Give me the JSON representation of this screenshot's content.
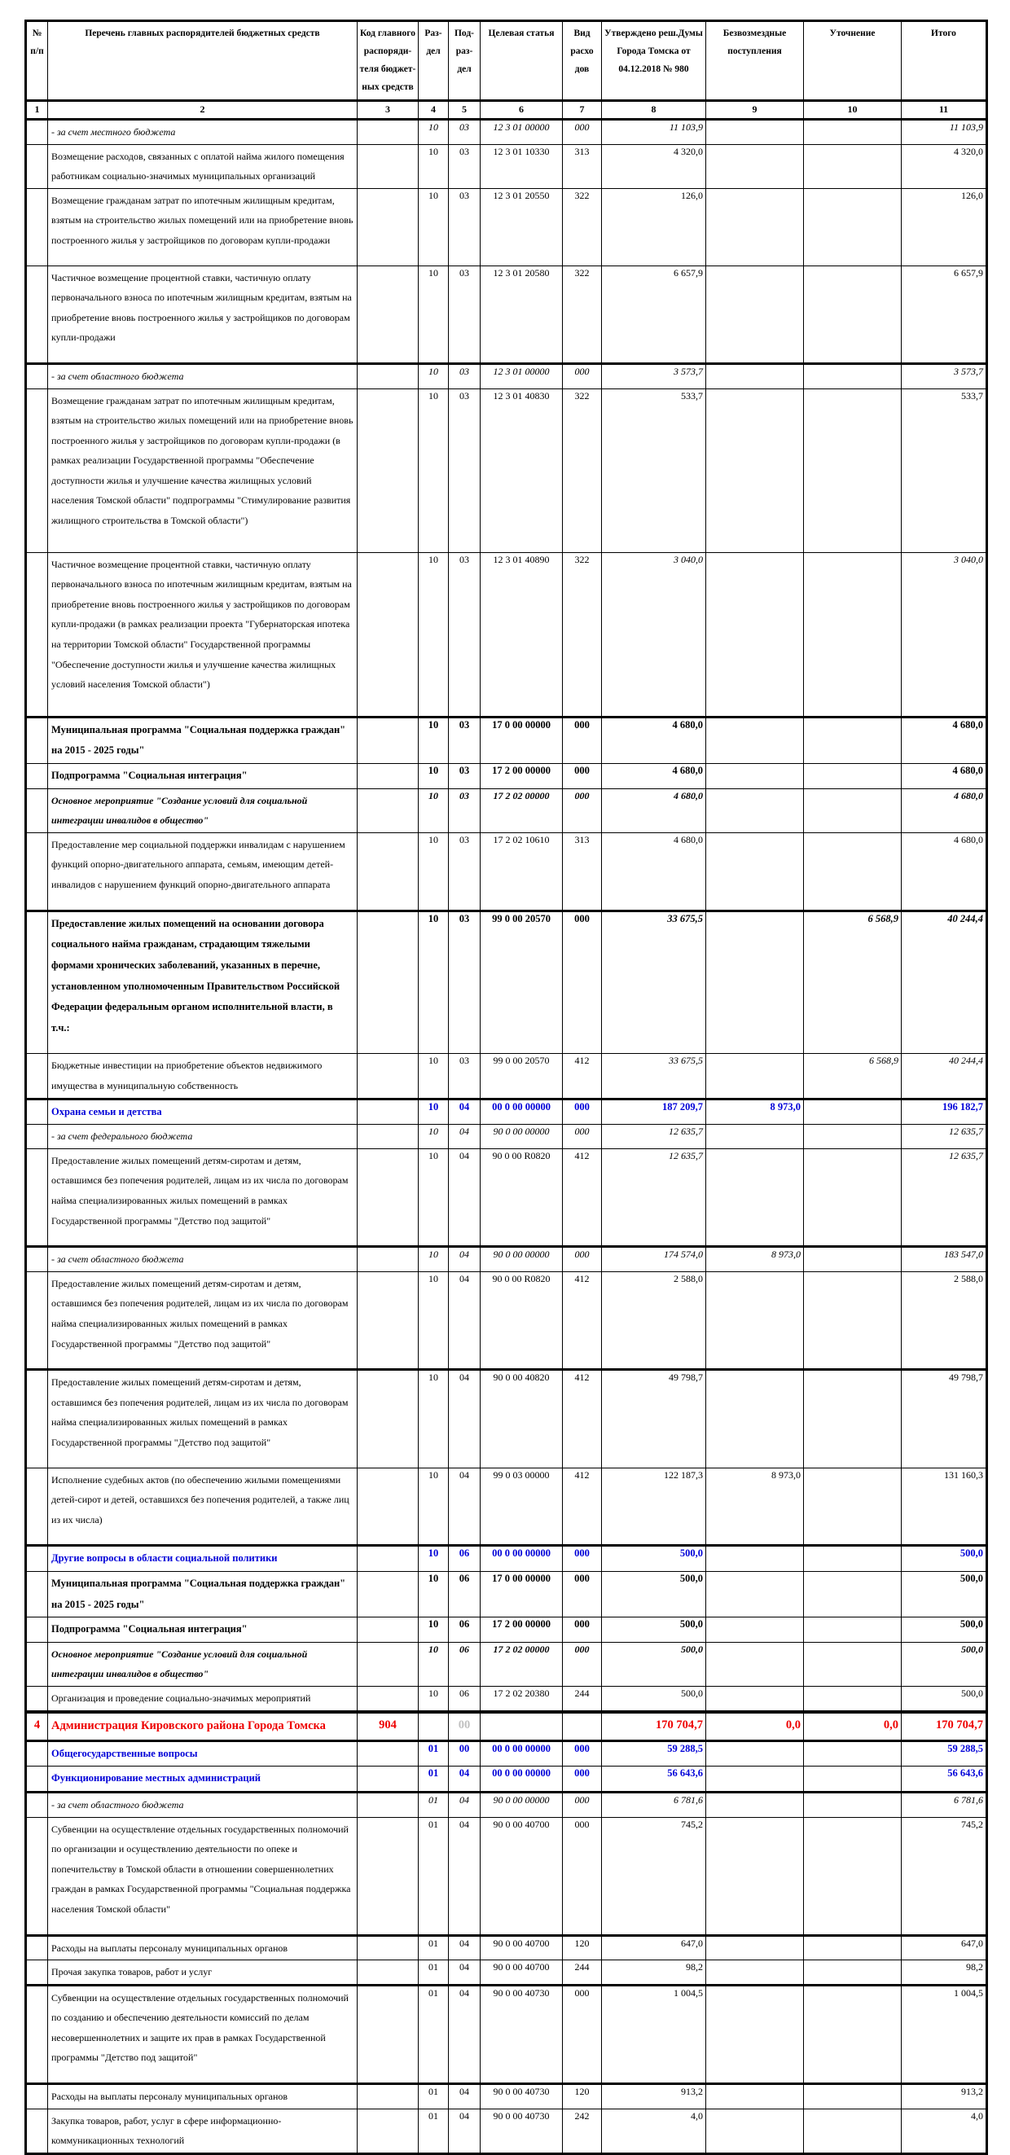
{
  "header": {
    "columns": [
      {
        "label": "№ п/п",
        "num": "1"
      },
      {
        "label": "Перечень главных распорядителей бюджетных средств",
        "num": "2"
      },
      {
        "label": "Код главного распоряди- теля бюджет- ных средств",
        "num": "3"
      },
      {
        "label": "Раз- дел",
        "num": "4"
      },
      {
        "label": "Под- раз- дел",
        "num": "5"
      },
      {
        "label": "Целевая статья",
        "num": "6"
      },
      {
        "label": "Вид расхо дов",
        "num": "7"
      },
      {
        "label": "Утверждено реш.Думы Города Томска от 04.12.2018 № 980",
        "num": "8"
      },
      {
        "label": "Безвозмездные поступления",
        "num": "9"
      },
      {
        "label": "Уточнение",
        "num": "10"
      },
      {
        "label": "Итого",
        "num": "11"
      }
    ]
  },
  "colors": {
    "section_blue": "#0000d8",
    "section_red": "#ee0000",
    "ghost_gray": "#c0c0c0",
    "border": "#000000"
  },
  "rows": [
    {
      "cls": "it",
      "num": "",
      "name": "- за счет местного бюджета",
      "code": "",
      "rz": "10",
      "pr": "03",
      "csr": "12 3 01 00000",
      "vr": "000",
      "approved": "11 103,9",
      "grants": "",
      "adjust": "",
      "total": "11 103,9"
    },
    {
      "cls": "",
      "num": "",
      "name": "Возмещение расходов, связанных с оплатой найма жилого помещения работникам социально-значимых муниципальных организаций",
      "code": "",
      "rz": "10",
      "pr": "03",
      "csr": "12 3 01 10330",
      "vr": "313",
      "approved": "4 320,0",
      "grants": "",
      "adjust": "",
      "total": "4 320,0"
    },
    {
      "cls": "",
      "num": "",
      "name": "Возмещение гражданам затрат по ипотечным жилищным кредитам, взятым на строительство жилых помещений или на приобретение вновь построенного жилья у застройщиков по договорам купли-продажи",
      "code": "",
      "rz": "10",
      "pr": "03",
      "csr": "12 3 01 20550",
      "vr": "322",
      "approved": "126,0",
      "grants": "",
      "adjust": "",
      "total": "126,0"
    },
    {
      "cls": "",
      "num": "",
      "name": "Частичное возмещение процентной ставки, частичную оплату первоначального взноса по ипотечным жилищным кредитам, взятым на приобретение вновь построенного жилья у застройщиков по договорам купли-продажи",
      "code": "",
      "rz": "10",
      "pr": "03",
      "csr": "12 3 01 20580",
      "vr": "322",
      "approved": "6 657,9",
      "grants": "",
      "adjust": "",
      "total": "6 657,9"
    },
    {
      "cls": "it",
      "thick": true,
      "num": "",
      "name": "- за счет областного бюджета",
      "code": "",
      "rz": "10",
      "pr": "03",
      "csr": "12 3 01 00000",
      "vr": "000",
      "approved": "3 573,7",
      "grants": "",
      "adjust": "",
      "total": "3 573,7"
    },
    {
      "cls": "",
      "num": "",
      "name": "Возмещение гражданам затрат по ипотечным жилищным кредитам, взятым на строительство жилых помещений или на приобретение вновь построенного жилья у застройщиков по договорам купли-продажи (в рамках реализации Государственной программы \"Обеспечение доступности жилья и улучшение качества жилищных условий населения Томской области\" подпрограммы \"Стимулирование развития жилищного строительства в Томской области\")",
      "code": "",
      "rz": "10",
      "pr": "03",
      "csr": "12 3 01 40830",
      "vr": "322",
      "approved": "533,7",
      "grants": "",
      "adjust": "",
      "total": "533,7"
    },
    {
      "cls": "",
      "num": "",
      "name": "Частичное возмещение процентной ставки, частичную оплату первоначального взноса по ипотечным жилищным кредитам, взятым на приобретение вновь построенного жилья у застройщиков по договорам купли-продажи (в рамках реализации проекта \"Губернаторская ипотека на территории Томской области\" Государственной программы \"Обеспечение доступности жилья и улучшение качества жилищных условий населения Томской области\")",
      "code": "",
      "rz": "10",
      "pr": "03",
      "csr": "12 3 01 40890",
      "vr": "322",
      "approved": "3 040,0",
      "grants": "",
      "adjust": "",
      "total": "3 040,0",
      "numcls": "it"
    },
    {
      "cls": "b",
      "thick": true,
      "num": "",
      "name": "Муниципальная программа \"Социальная поддержка граждан\" на 2015 - 2025 годы\"",
      "code": "",
      "rz": "10",
      "pr": "03",
      "csr": "17 0 00 00000",
      "vr": "000",
      "approved": "4 680,0",
      "grants": "",
      "adjust": "",
      "total": "4 680,0"
    },
    {
      "cls": "b",
      "num": "",
      "name": "Подпрограмма \"Социальная интеграция\"",
      "code": "",
      "rz": "10",
      "pr": "03",
      "csr": "17 2 00 00000",
      "vr": "000",
      "approved": "4 680,0",
      "grants": "",
      "adjust": "",
      "total": "4 680,0"
    },
    {
      "cls": "bi",
      "num": "",
      "name": "Основное мероприятие \"Создание условий для социальной интеграции инвалидов в общество\"",
      "code": "",
      "rz": "10",
      "pr": "03",
      "csr": "17 2 02 00000",
      "vr": "000",
      "approved": "4 680,0",
      "grants": "",
      "adjust": "",
      "total": "4 680,0"
    },
    {
      "cls": "",
      "num": "",
      "name": "Предоставление мер социальной поддержки инвалидам с нарушением функций опорно-двигательного аппарата, семьям, имеющим детей-инвалидов с нарушением функций опорно-двигательного аппарата",
      "code": "",
      "rz": "10",
      "pr": "03",
      "csr": "17 2 02 10610",
      "vr": "313",
      "approved": "4 680,0",
      "grants": "",
      "adjust": "",
      "total": "4 680,0"
    },
    {
      "cls": "b",
      "thick": true,
      "num": "",
      "name": "Предоставление жилых помещений на основании договора социального найма гражданам, страдающим тяжелыми формами хронических заболеваний, указанных в перечне, установленном уполномоченным Правительством Российской Федерации федеральным органом исполнительной власти, в т.ч.:",
      "code": "",
      "rz": "10",
      "pr": "03",
      "csr": "99 0 00 20570",
      "vr": "000",
      "approved": "33 675,5",
      "grants": "",
      "adjust": "6 568,9",
      "total": "40 244,4",
      "numcls": "bi"
    },
    {
      "cls": "",
      "num": "",
      "name": "Бюджетные инвестиции на приобретение объектов недвижимого имущества в муниципальную собственность",
      "code": "",
      "rz": "10",
      "pr": "03",
      "csr": "99 0 00 20570",
      "vr": "412",
      "approved": "33 675,5",
      "grants": "",
      "adjust": "6 568,9",
      "total": "40 244,4",
      "numcls": "it"
    },
    {
      "cls": "blue",
      "thick": true,
      "num": "",
      "name": "Охрана семьи и детства",
      "code": "",
      "rz": "10",
      "pr": "04",
      "csr": "00 0 00 00000",
      "vr": "000",
      "approved": "187 209,7",
      "grants": "8 973,0",
      "adjust": "",
      "total": "196 182,7"
    },
    {
      "cls": "it",
      "num": "",
      "name": "- за счет федерального бюджета",
      "code": "",
      "rz": "10",
      "pr": "04",
      "csr": "90 0 00 00000",
      "vr": "000",
      "approved": "12 635,7",
      "grants": "",
      "adjust": "",
      "total": "12 635,7"
    },
    {
      "cls": "",
      "num": "",
      "name": "Предоставление жилых помещений детям-сиротам и детям, оставшимся без попечения родителей, лицам из их числа по договорам найма специализированных жилых помещений  в рамках Государственной программы \"Детство под защитой\"",
      "code": "",
      "rz": "10",
      "pr": "04",
      "csr": "90 0 00 R0820",
      "vr": "412",
      "approved": "12 635,7",
      "grants": "",
      "adjust": "",
      "total": "12 635,7",
      "numcls": "it"
    },
    {
      "cls": "it",
      "thick": true,
      "num": "",
      "name": "- за счет областного бюджета",
      "code": "",
      "rz": "10",
      "pr": "04",
      "csr": "90 0 00 00000",
      "vr": "000",
      "approved": "174 574,0",
      "grants": "8 973,0",
      "adjust": "",
      "total": "183 547,0"
    },
    {
      "cls": "",
      "num": "",
      "name": "Предоставление жилых помещений детям-сиротам и детям, оставшимся без попечения родителей, лицам из их числа по договорам найма специализированных жилых помещений в рамках Государственной программы \"Детство под защитой\"",
      "code": "",
      "rz": "10",
      "pr": "04",
      "csr": "90 0 00 R0820",
      "vr": "412",
      "approved": "2 588,0",
      "grants": "",
      "adjust": "",
      "total": "2 588,0"
    },
    {
      "cls": "",
      "thick": true,
      "num": "",
      "name": "Предоставление жилых помещений детям-сиротам и детям, оставшимся без попечения родителей, лицам из их числа по договорам найма специализированных жилых помещений в рамках Государственной программы \"Детство под защитой\"",
      "code": "",
      "rz": "10",
      "pr": "04",
      "csr": "90 0 00 40820",
      "vr": "412",
      "approved": "49 798,7",
      "grants": "",
      "adjust": "",
      "total": "49 798,7"
    },
    {
      "cls": "",
      "num": "",
      "name": "Исполнение судебных актов (по обеспечению жилыми помещениями детей-сирот и детей, оставшихся без попечения родителей, а также лиц из их числа)",
      "code": "",
      "rz": "10",
      "pr": "04",
      "csr": "99 0 03 00000",
      "vr": "412",
      "approved": "122 187,3",
      "grants": "8 973,0",
      "adjust": "",
      "total": "131 160,3"
    },
    {
      "cls": "blue",
      "thick": true,
      "num": "",
      "name": "Другие вопросы в области социальной политики",
      "code": "",
      "rz": "10",
      "pr": "06",
      "csr": "00 0 00 00000",
      "vr": "000",
      "approved": "500,0",
      "grants": "",
      "adjust": "",
      "total": "500,0"
    },
    {
      "cls": "b",
      "num": "",
      "name": "Муниципальная программа \"Социальная поддержка граждан\" на 2015 - 2025 годы\"",
      "code": "",
      "rz": "10",
      "pr": "06",
      "csr": "17 0 00 00000",
      "vr": "000",
      "approved": "500,0",
      "grants": "",
      "adjust": "",
      "total": "500,0"
    },
    {
      "cls": "b",
      "num": "",
      "name": "Подпрограмма \"Социальная интеграция\"",
      "code": "",
      "rz": "10",
      "pr": "06",
      "csr": "17 2 00 00000",
      "vr": "000",
      "approved": "500,0",
      "grants": "",
      "adjust": "",
      "total": "500,0"
    },
    {
      "cls": "bi",
      "num": "",
      "name": "Основное мероприятие \"Создание условий для социальной интеграции инвалидов в общество\"",
      "code": "",
      "rz": "10",
      "pr": "06",
      "csr": "17 2 02 00000",
      "vr": "000",
      "approved": "500,0",
      "grants": "",
      "adjust": "",
      "total": "500,0"
    },
    {
      "cls": "",
      "num": "",
      "name": "Организация и проведение социально-значимых мероприятий",
      "code": "",
      "rz": "10",
      "pr": "06",
      "csr": "17 2 02 20380",
      "vr": "244",
      "approved": "500,0",
      "grants": "",
      "adjust": "",
      "total": "500,0"
    },
    {
      "cls": "red",
      "vthick": true,
      "num": "4",
      "name": "Администрация Кировского района Города Томска",
      "code": "904",
      "rz": "",
      "pr": "",
      "ghost_pr": "00",
      "csr": "",
      "vr": "",
      "approved": "170 704,7",
      "grants": "0,0",
      "adjust": "0,0",
      "total": "170 704,7"
    },
    {
      "cls": "blue",
      "thick": true,
      "num": "",
      "name": "Общегосударственные вопросы",
      "code": "",
      "rz": "01",
      "pr": "00",
      "csr": "00 0 00 00000",
      "vr": "000",
      "approved": "59 288,5",
      "grants": "",
      "adjust": "",
      "total": "59 288,5"
    },
    {
      "cls": "blue",
      "num": "",
      "name": "Функционирование местных администраций",
      "code": "",
      "rz": "01",
      "pr": "04",
      "csr": "00 0 00 00000",
      "vr": "000",
      "approved": "56 643,6",
      "grants": "",
      "adjust": "",
      "total": "56 643,6"
    },
    {
      "cls": "it",
      "thick": true,
      "num": "",
      "name": "- за счет областного бюджета",
      "code": "",
      "rz": "01",
      "pr": "04",
      "csr": "90 0 00 00000",
      "vr": "000",
      "approved": "6 781,6",
      "grants": "",
      "adjust": "",
      "total": "6 781,6"
    },
    {
      "cls": "",
      "num": "",
      "name": "Субвенции на осуществление отдельных государственных полномочий по организации и осуществлению деятельности по опеке и попечительству в Томской области в отношении совершеннолетних граждан в рамках Государственной программы \"Социальная поддержка населения Томской области\"",
      "code": "",
      "rz": "01",
      "pr": "04",
      "csr": "90 0 00 40700",
      "vr": "000",
      "approved": "745,2",
      "grants": "",
      "adjust": "",
      "total": "745,2"
    },
    {
      "cls": "",
      "thick": true,
      "num": "",
      "name": "Расходы на выплаты персоналу муниципальных органов",
      "code": "",
      "rz": "01",
      "pr": "04",
      "csr": "90 0 00 40700",
      "vr": "120",
      "approved": "647,0",
      "grants": "",
      "adjust": "",
      "total": "647,0"
    },
    {
      "cls": "",
      "num": "",
      "name": "Прочая закупка товаров, работ и услуг",
      "code": "",
      "rz": "01",
      "pr": "04",
      "csr": "90 0 00 40700",
      "vr": "244",
      "approved": "98,2",
      "grants": "",
      "adjust": "",
      "total": "98,2"
    },
    {
      "cls": "",
      "thick": true,
      "num": "",
      "name": "Субвенции на осуществление отдельных государственных полномочий по созданию и обеспечению деятельности комиссий по делам несовершеннолетних и защите их прав в рамках Государственной программы \"Детство под защитой\"",
      "code": "",
      "rz": "01",
      "pr": "04",
      "csr": "90 0 00 40730",
      "vr": "000",
      "approved": "1 004,5",
      "grants": "",
      "adjust": "",
      "total": "1 004,5"
    },
    {
      "cls": "",
      "thick": true,
      "num": "",
      "name": "Расходы на выплаты персоналу муниципальных органов",
      "code": "",
      "rz": "01",
      "pr": "04",
      "csr": "90 0 00 40730",
      "vr": "120",
      "approved": "913,2",
      "grants": "",
      "adjust": "",
      "total": "913,2"
    },
    {
      "cls": "",
      "num": "",
      "name": "Закупка товаров, работ, услуг в сфере информационно-коммуникационных технологий",
      "code": "",
      "rz": "01",
      "pr": "04",
      "csr": "90 0 00 40730",
      "vr": "242",
      "approved": "4,0",
      "grants": "",
      "adjust": "",
      "total": "4,0"
    }
  ]
}
